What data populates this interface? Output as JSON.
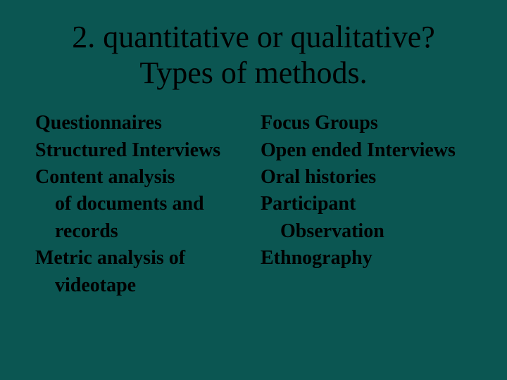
{
  "background_color": "#0b5652",
  "title_color": "#000000",
  "text_color": "#000000",
  "title_fontsize": 44,
  "body_fontsize": 28,
  "title": {
    "line1": "2. quantitative or qualitative?",
    "line2": "Types of methods."
  },
  "left": {
    "l0": "Questionnaires",
    "l1": "Structured Interviews",
    "l2": "Content analysis",
    "l3": "of documents and",
    "l4": "records",
    "l5": "Metric analysis of",
    "l6": "videotape"
  },
  "right": {
    "r0": "Focus Groups",
    "r1": "Open ended Interviews",
    "r2": "Oral histories",
    "r3": "Participant",
    "r4": "Observation",
    "r5": "Ethnography"
  }
}
